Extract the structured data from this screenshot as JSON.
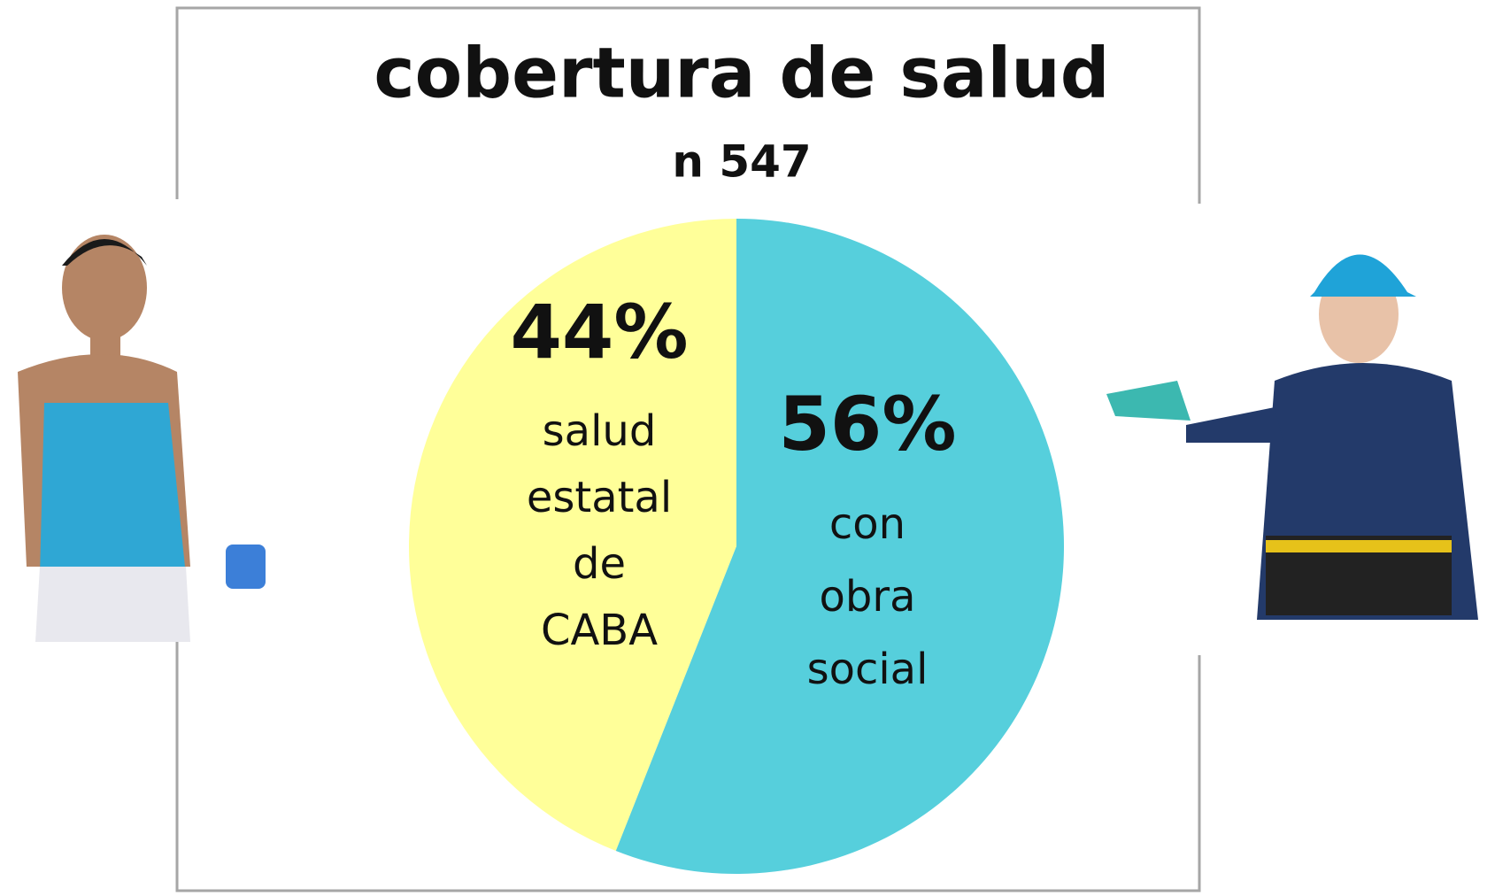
{
  "chart_data": {
    "type": "pie",
    "title": "cobertura de salud",
    "subtitle": "n 547",
    "categories": [
      "salud estatal de CABA",
      "con obra social"
    ],
    "values": [
      44,
      56
    ],
    "value_labels": [
      "44%",
      "56%"
    ],
    "colors": [
      "#ffff99",
      "#56cfdc"
    ]
  }
}
